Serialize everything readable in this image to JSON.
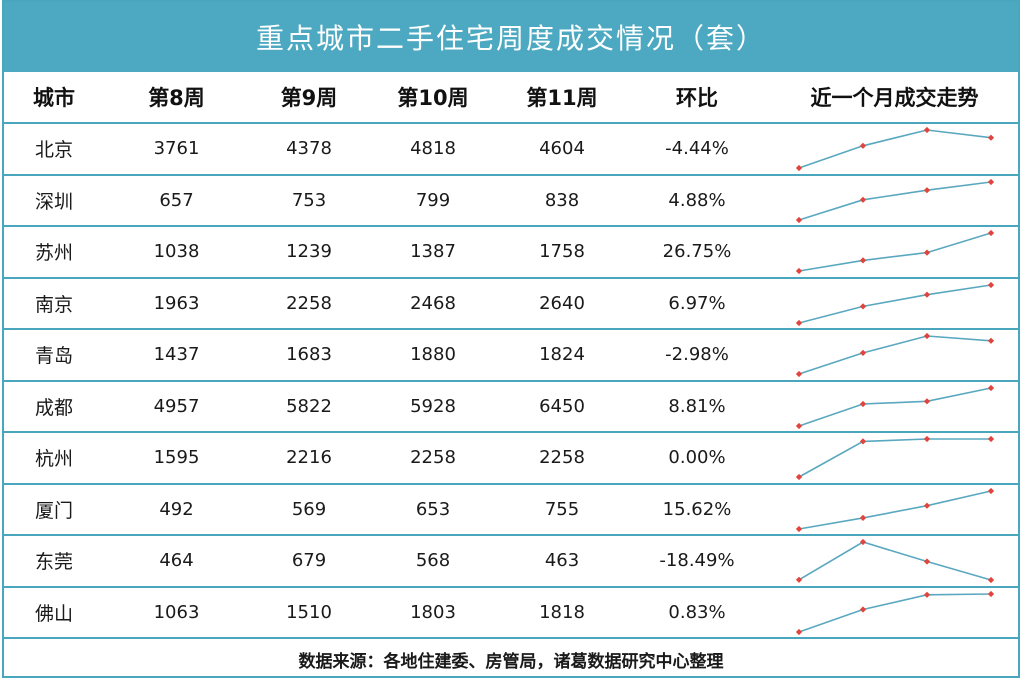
{
  "title": "重点城市二手住宅周度成交情况（套）",
  "headers": [
    "城市",
    "第8周",
    "第9周",
    "第10周",
    "第11周",
    "环比",
    "近一个月成交走势"
  ],
  "footer": "数据来源：各地住建委、房管局，诸葛数据研究中心整理",
  "colors": {
    "title_bg": "#4ca9c1",
    "border": "#4aa6bd",
    "spark_line": "#5aa8bf",
    "spark_dot": "#e0443c"
  },
  "chart_data": {
    "type": "table",
    "title": "重点城市二手住宅周度成交情况（套）",
    "columns": [
      "城市",
      "第8周",
      "第9周",
      "第10周",
      "第11周",
      "环比",
      "近一个月成交走势"
    ],
    "rows": [
      {
        "city": "北京",
        "values": [
          3761,
          4378,
          4818,
          4604
        ],
        "ratio": "-4.44%"
      },
      {
        "city": "深圳",
        "values": [
          657,
          753,
          799,
          838
        ],
        "ratio": "4.88%"
      },
      {
        "city": "苏州",
        "values": [
          1038,
          1239,
          1387,
          1758
        ],
        "ratio": "26.75%"
      },
      {
        "city": "南京",
        "values": [
          1963,
          2258,
          2468,
          2640
        ],
        "ratio": "6.97%"
      },
      {
        "city": "青岛",
        "values": [
          1437,
          1683,
          1880,
          1824
        ],
        "ratio": "-2.98%"
      },
      {
        "city": "成都",
        "values": [
          4957,
          5822,
          5928,
          6450
        ],
        "ratio": "8.81%"
      },
      {
        "city": "杭州",
        "values": [
          1595,
          2216,
          2258,
          2258
        ],
        "ratio": "0.00%"
      },
      {
        "city": "厦门",
        "values": [
          492,
          569,
          653,
          755
        ],
        "ratio": "15.62%"
      },
      {
        "city": "东莞",
        "values": [
          464,
          679,
          568,
          463
        ],
        "ratio": "-18.49%"
      },
      {
        "city": "佛山",
        "values": [
          1063,
          1510,
          1803,
          1818
        ],
        "ratio": "0.83%"
      }
    ]
  }
}
